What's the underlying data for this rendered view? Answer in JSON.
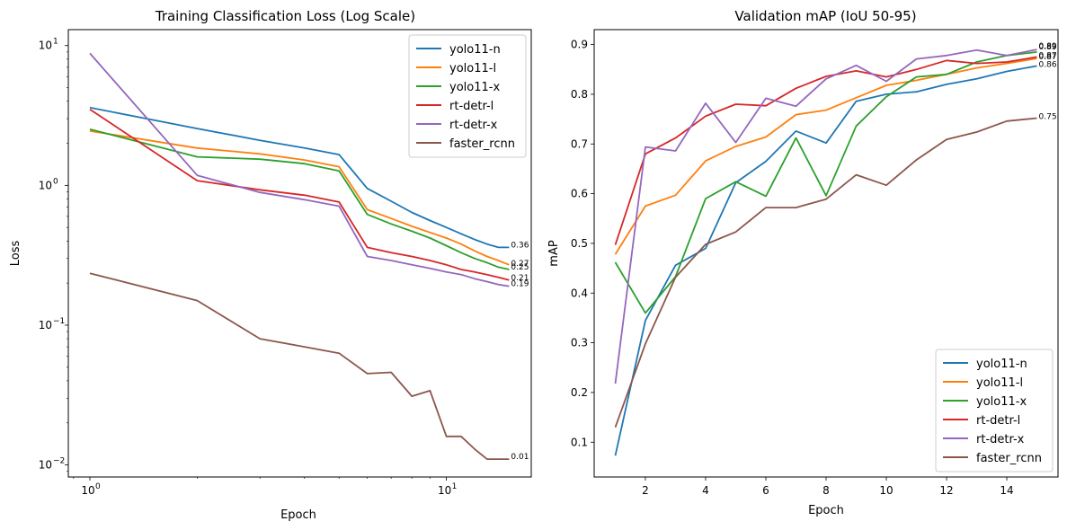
{
  "chart_data": [
    {
      "type": "line",
      "title": "Training Classification Loss (Log Scale)",
      "xlabel": "Epoch",
      "ylabel": "Loss",
      "xscale": "log",
      "yscale": "log",
      "xlim": [
        0.87,
        17.3
      ],
      "ylim": [
        0.0082,
        13
      ],
      "xticks": [
        {
          "base": "10",
          "exp": "0"
        },
        {
          "base": "10",
          "exp": "1"
        }
      ],
      "yticks": [
        {
          "base": "10",
          "exp": "-2"
        },
        {
          "base": "10",
          "exp": "-1"
        },
        {
          "base": "10",
          "exp": "0"
        },
        {
          "base": "10",
          "exp": "1"
        }
      ],
      "legend": "top-right",
      "grid": false,
      "x": [
        1,
        2,
        3,
        4,
        5,
        6,
        7,
        8,
        9,
        10,
        11,
        12,
        13,
        14,
        15
      ],
      "series": [
        {
          "name": "yolo11-n",
          "color": "#1f77b4",
          "values": [
            3.6,
            2.55,
            2.1,
            1.85,
            1.66,
            0.95,
            0.77,
            0.64,
            0.56,
            0.5,
            0.45,
            0.41,
            0.38,
            0.36,
            0.36
          ],
          "end_label": "0.36"
        },
        {
          "name": "yolo11-l",
          "color": "#ff7f0e",
          "values": [
            2.45,
            1.85,
            1.68,
            1.52,
            1.36,
            0.67,
            0.58,
            0.51,
            0.46,
            0.42,
            0.38,
            0.34,
            0.31,
            0.29,
            0.27
          ],
          "end_label": "0.27"
        },
        {
          "name": "yolo11-x",
          "color": "#2ca02c",
          "values": [
            2.52,
            1.6,
            1.54,
            1.43,
            1.27,
            0.62,
            0.53,
            0.47,
            0.42,
            0.37,
            0.33,
            0.3,
            0.28,
            0.26,
            0.25
          ],
          "end_label": "0.25"
        },
        {
          "name": "rt-detr-l",
          "color": "#d62728",
          "values": [
            3.5,
            1.08,
            0.93,
            0.85,
            0.76,
            0.36,
            0.33,
            0.31,
            0.29,
            0.27,
            0.25,
            0.24,
            0.23,
            0.22,
            0.21
          ],
          "end_label": "0.21"
        },
        {
          "name": "rt-detr-x",
          "color": "#9467bd",
          "values": [
            8.8,
            1.18,
            0.89,
            0.79,
            0.71,
            0.31,
            0.29,
            0.27,
            0.255,
            0.24,
            0.23,
            0.215,
            0.205,
            0.195,
            0.19
          ],
          "end_label": "0.19"
        },
        {
          "name": "faster_rcnn",
          "color": "#8c564b",
          "values": [
            0.235,
            0.15,
            0.08,
            0.07,
            0.063,
            0.045,
            0.046,
            0.031,
            0.034,
            0.016,
            0.016,
            0.013,
            0.011,
            0.011,
            0.011
          ],
          "end_label": "0.01"
        }
      ]
    },
    {
      "type": "line",
      "title": "Validation mAP (IoU 50-95)",
      "xlabel": "Epoch",
      "ylabel": "mAP",
      "xlim": [
        0.3,
        15.7
      ],
      "ylim": [
        0.03,
        0.93
      ],
      "xticks": [
        "2",
        "4",
        "6",
        "8",
        "10",
        "12",
        "14"
      ],
      "yticks": [
        "0.1",
        "0.2",
        "0.3",
        "0.4",
        "0.5",
        "0.6",
        "0.7",
        "0.8",
        "0.9"
      ],
      "legend": "lower-right",
      "grid": false,
      "x": [
        1,
        2,
        3,
        4,
        5,
        6,
        7,
        8,
        9,
        10,
        11,
        12,
        13,
        14,
        15
      ],
      "series": [
        {
          "name": "yolo11-n",
          "color": "#1f77b4",
          "values": [
            0.073,
            0.345,
            0.456,
            0.49,
            0.622,
            0.665,
            0.726,
            0.702,
            0.786,
            0.8,
            0.805,
            0.82,
            0.831,
            0.846,
            0.857
          ],
          "end_label": "0.86"
        },
        {
          "name": "yolo11-l",
          "color": "#ff7f0e",
          "values": [
            0.478,
            0.575,
            0.597,
            0.666,
            0.695,
            0.714,
            0.759,
            0.768,
            0.793,
            0.818,
            0.828,
            0.84,
            0.853,
            0.862,
            0.872
          ],
          "end_label": "0.87"
        },
        {
          "name": "yolo11-x",
          "color": "#2ca02c",
          "values": [
            0.462,
            0.36,
            0.433,
            0.59,
            0.624,
            0.595,
            0.712,
            0.596,
            0.736,
            0.795,
            0.835,
            0.84,
            0.865,
            0.878,
            0.885
          ],
          "end_label": "0.89"
        },
        {
          "name": "rt-detr-l",
          "color": "#d62728",
          "values": [
            0.497,
            0.68,
            0.712,
            0.756,
            0.78,
            0.777,
            0.812,
            0.836,
            0.847,
            0.835,
            0.85,
            0.868,
            0.862,
            0.865,
            0.875
          ],
          "end_label": "0.87"
        },
        {
          "name": "rt-detr-x",
          "color": "#9467bd",
          "values": [
            0.218,
            0.694,
            0.686,
            0.782,
            0.703,
            0.792,
            0.776,
            0.831,
            0.858,
            0.826,
            0.871,
            0.878,
            0.889,
            0.878,
            0.89
          ],
          "end_label": "0.89"
        },
        {
          "name": "faster_rcnn",
          "color": "#8c564b",
          "values": [
            0.13,
            0.298,
            0.432,
            0.498,
            0.523,
            0.572,
            0.572,
            0.589,
            0.638,
            0.617,
            0.668,
            0.709,
            0.724,
            0.746,
            0.752
          ],
          "end_label": "0.75"
        }
      ]
    }
  ]
}
